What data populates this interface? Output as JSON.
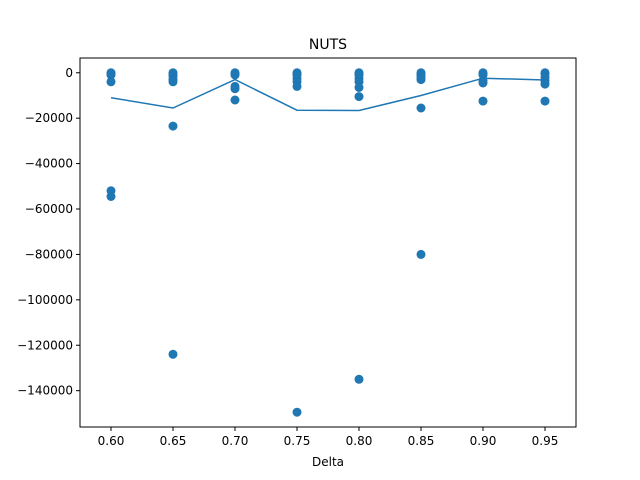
{
  "chart_data": {
    "type": "scatter",
    "title": "NUTS",
    "xlabel": "Delta",
    "ylabel": "",
    "xlim": [
      0.575,
      0.975
    ],
    "ylim": [
      -156000,
      6500
    ],
    "xticks": [
      0.6,
      0.65,
      0.7,
      0.75,
      0.8,
      0.85,
      0.9,
      0.95
    ],
    "xtick_labels": [
      "0.60",
      "0.65",
      "0.70",
      "0.75",
      "0.80",
      "0.85",
      "0.90",
      "0.95"
    ],
    "yticks": [
      0,
      -20000,
      -40000,
      -60000,
      -80000,
      -100000,
      -120000,
      -140000
    ],
    "ytick_labels": [
      "0",
      "−20000",
      "−40000",
      "−60000",
      "−80000",
      "−100000",
      "−120000",
      "−140000"
    ],
    "color": "#1f77b4",
    "grid": false,
    "scatter": {
      "x": [
        0.6,
        0.6,
        0.6,
        0.6,
        0.6,
        0.6,
        0.6,
        0.65,
        0.65,
        0.65,
        0.65,
        0.65,
        0.65,
        0.65,
        0.7,
        0.7,
        0.7,
        0.7,
        0.7,
        0.7,
        0.75,
        0.75,
        0.75,
        0.75,
        0.75,
        0.75,
        0.75,
        0.8,
        0.8,
        0.8,
        0.8,
        0.8,
        0.8,
        0.8,
        0.8,
        0.85,
        0.85,
        0.85,
        0.85,
        0.85,
        0.85,
        0.85,
        0.9,
        0.9,
        0.9,
        0.9,
        0.9,
        0.9,
        0.95,
        0.95,
        0.95,
        0.95,
        0.95,
        0.95
      ],
      "y": [
        0,
        -500,
        -1000,
        -4000,
        -52000,
        -54500,
        -300,
        0,
        -500,
        -1500,
        -3000,
        -4000,
        -23500,
        -124000,
        0,
        -500,
        -1000,
        -6000,
        -7000,
        -12000,
        0,
        -1000,
        -2500,
        -4000,
        -6000,
        -149500,
        -500,
        0,
        -1000,
        -2500,
        -4000,
        -6500,
        -10500,
        -135000,
        -500,
        0,
        -500,
        -1000,
        -2000,
        -3000,
        -15500,
        -80000,
        0,
        -500,
        -1000,
        -3500,
        -4500,
        -12500,
        0,
        -500,
        -2000,
        -3500,
        -5000,
        -12500
      ]
    },
    "line": {
      "x": [
        0.6,
        0.65,
        0.7,
        0.75,
        0.8,
        0.85,
        0.9,
        0.95
      ],
      "y": [
        -11000,
        -15500,
        -3000,
        -16500,
        -16600,
        -10000,
        -2400,
        -3200
      ]
    }
  }
}
